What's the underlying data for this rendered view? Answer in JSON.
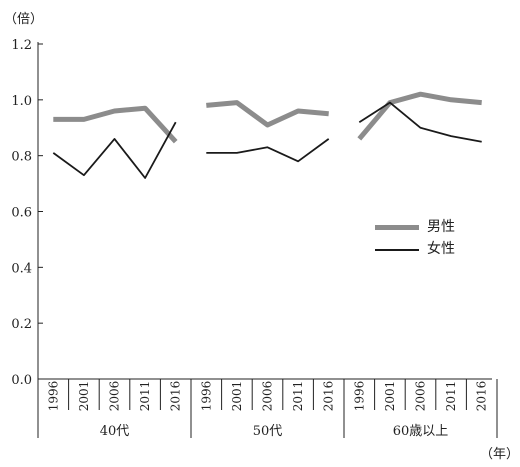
{
  "chart_data": {
    "type": "line",
    "y_unit_label": "（倍）",
    "x_unit_label": "（年）",
    "ylim": [
      0.0,
      1.2
    ],
    "yticks": [
      "0.0",
      "0.2",
      "0.4",
      "0.6",
      "0.8",
      "1.0",
      "1.2"
    ],
    "grid": false,
    "legend_position": "right-middle",
    "groups": [
      {
        "label": "40代",
        "years": [
          "1996",
          "2001",
          "2006",
          "2011",
          "2016"
        ],
        "series": [
          {
            "name": "男性",
            "values": [
              0.93,
              0.93,
              0.96,
              0.97,
              0.85
            ]
          },
          {
            "name": "女性",
            "values": [
              0.81,
              0.73,
              0.86,
              0.72,
              0.92
            ]
          }
        ]
      },
      {
        "label": "50代",
        "years": [
          "1996",
          "2001",
          "2006",
          "2011",
          "2016"
        ],
        "series": [
          {
            "name": "男性",
            "values": [
              0.98,
              0.99,
              0.91,
              0.96,
              0.95
            ]
          },
          {
            "name": "女性",
            "values": [
              0.81,
              0.81,
              0.83,
              0.78,
              0.86
            ]
          }
        ]
      },
      {
        "label": "60歳以上",
        "years": [
          "1996",
          "2001",
          "2006",
          "2011",
          "2016"
        ],
        "series": [
          {
            "name": "男性",
            "values": [
              0.86,
              0.99,
              1.02,
              1.0,
              0.99
            ]
          },
          {
            "name": "女性",
            "values": [
              0.92,
              0.99,
              0.9,
              0.87,
              0.85
            ]
          }
        ]
      }
    ],
    "legend": [
      {
        "name": "男性",
        "color": "#8c8c8c"
      },
      {
        "name": "女性",
        "color": "#1a1a1a"
      }
    ]
  }
}
